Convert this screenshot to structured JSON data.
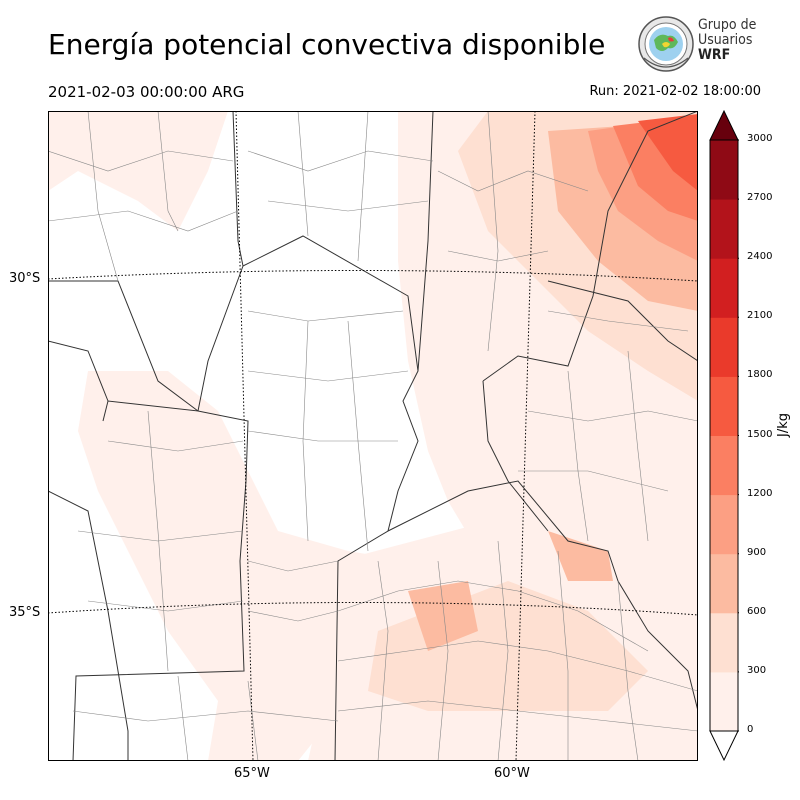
{
  "header": {
    "title": "Energía potencial convectiva disponible",
    "valid_time": "2021-02-03 00:00:00 ARG",
    "run_time": "Run: 2021-02-02 18:00:00"
  },
  "logo": {
    "line1": "Grupo de",
    "line2": "Usuarios",
    "line3": "WRF"
  },
  "map": {
    "lat_labels": [
      "30°S",
      "35°S"
    ],
    "lon_labels": [
      "65°W",
      "60°W"
    ]
  },
  "colorbar": {
    "unit": "J/kg",
    "ticks": [
      "0",
      "300",
      "600",
      "900",
      "1200",
      "1500",
      "1800",
      "2100",
      "2400",
      "2700",
      "3000"
    ],
    "colors": [
      "#fff0eb",
      "#fee0d2",
      "#fcbba1",
      "#fc9f83",
      "#fb7f62",
      "#f65a40",
      "#ea3a2b",
      "#d21f20",
      "#b3131b",
      "#8f0a15",
      "#67000d"
    ]
  }
}
